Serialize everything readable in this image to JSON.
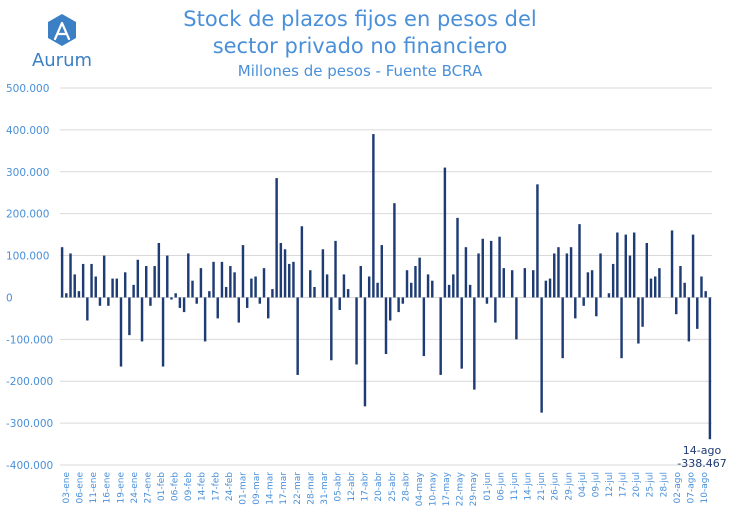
{
  "brand": {
    "name": "Aurum",
    "accent": "#4a90d9"
  },
  "colors": {
    "bar": "#1f3b73",
    "text": "#4a90d9",
    "grid": "#d9d9d9"
  },
  "chart_data": {
    "type": "bar",
    "title": "Stock de plazos fijos en pesos del sector privado no financiero",
    "title_lines": [
      "Stock de plazos fijos en pesos del",
      "sector privado no financiero"
    ],
    "subtitle": "Millones de pesos - Fuente BCRA",
    "xlabel": "",
    "ylabel": "",
    "ylim": [
      -400000,
      500000
    ],
    "yticks": [
      500000,
      400000,
      300000,
      200000,
      100000,
      0,
      -100000,
      -200000,
      -300000,
      -400000
    ],
    "ytick_labels": [
      "500.000",
      "400.000",
      "300.000",
      "200.000",
      "100.000",
      "0",
      "-100.000",
      "-200.000",
      "-300.000",
      "-400.000"
    ],
    "grid": true,
    "xtick_labels": [
      "03-ene",
      "06-ene",
      "11-ene",
      "16-ene",
      "19-ene",
      "24-ene",
      "27-ene",
      "01-feb",
      "06-feb",
      "09-feb",
      "14-feb",
      "17-feb",
      "24-feb",
      "01-mar",
      "09-mar",
      "14-mar",
      "17-mar",
      "22-mar",
      "28-mar",
      "31-mar",
      "05-abr",
      "12-abr",
      "17-abr",
      "20-abr",
      "25-abr",
      "28-abr",
      "04-may",
      "10-may",
      "17-may",
      "22-may",
      "29-may",
      "01-jun",
      "06-jun",
      "11-jun",
      "14-jun",
      "21-jun",
      "26-jun",
      "29-jun",
      "04-jul",
      "09-jul",
      "12-jul",
      "17-jul",
      "20-jul",
      "25-jul",
      "28-jul",
      "02-ago",
      "07-ago",
      "10-ago"
    ],
    "values": [
      120000,
      10000,
      105000,
      55000,
      15000,
      80000,
      -55000,
      80000,
      50000,
      -20000,
      100000,
      -20000,
      45000,
      45000,
      -165000,
      60000,
      -90000,
      30000,
      90000,
      -105000,
      75000,
      -20000,
      75000,
      130000,
      -165000,
      100000,
      -5000,
      10000,
      -25000,
      -35000,
      105000,
      40000,
      -15000,
      70000,
      -105000,
      15000,
      85000,
      -50000,
      85000,
      25000,
      75000,
      60000,
      -60000,
      125000,
      -25000,
      45000,
      50000,
      -15000,
      70000,
      -50000,
      20000,
      285000,
      130000,
      115000,
      80000,
      85000,
      -185000,
      170000,
      0,
      65000,
      25000,
      0,
      115000,
      55000,
      -150000,
      135000,
      -30000,
      55000,
      20000,
      0,
      -160000,
      75000,
      -260000,
      50000,
      390000,
      35000,
      125000,
      -135000,
      -55000,
      225000,
      -35000,
      -15000,
      65000,
      35000,
      75000,
      95000,
      -140000,
      55000,
      40000,
      0,
      -185000,
      310000,
      30000,
      55000,
      190000,
      -170000,
      120000,
      30000,
      -220000,
      105000,
      140000,
      -15000,
      135000,
      -60000,
      145000,
      70000,
      0,
      65000,
      -100000,
      0,
      70000,
      0,
      65000,
      270000,
      -275000,
      40000,
      45000,
      105000,
      120000,
      -145000,
      105000,
      120000,
      -50000,
      175000,
      -20000,
      60000,
      65000,
      -45000,
      105000,
      0,
      10000,
      80000,
      155000,
      -145000,
      150000,
      100000,
      155000,
      -110000,
      -70000,
      130000,
      45000,
      50000,
      70000,
      0,
      0,
      160000,
      -40000,
      75000,
      35000,
      -105000,
      150000,
      -75000,
      50000,
      15000,
      -338467
    ],
    "annotation": {
      "label": "14-ago",
      "value": "-338.467"
    }
  }
}
